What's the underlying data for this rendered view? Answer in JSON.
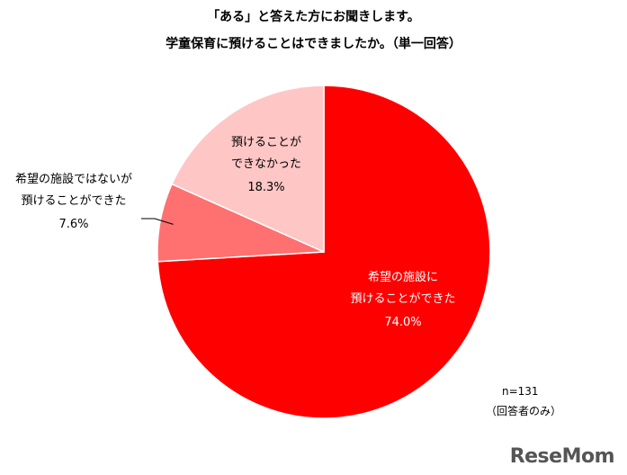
{
  "header": {
    "title_line1": "「ある」と答えた方にお聞きします。",
    "title_line2": "学童保育に預けることはできましたか。（単一回答）"
  },
  "notes": {
    "n": "n=131",
    "respondents": "（回答者のみ）"
  },
  "logo": "ReseMom",
  "colors": {
    "slice1": "#ff0000",
    "slice2": "#ff7070",
    "slice3": "#ffc6c6"
  },
  "chart_data": {
    "type": "pie",
    "title": "「ある」と答えた方にお聞きします。 学童保育に預けることはできましたか。（単一回答）",
    "slices": [
      {
        "label_lines": [
          "希望の施設に",
          "預けることができた"
        ],
        "value": 74.0,
        "value_label": "74.0%"
      },
      {
        "label_lines": [
          "希望の施設ではないが",
          "預けることができた"
        ],
        "value": 7.6,
        "value_label": "7.6%"
      },
      {
        "label_lines": [
          "預けることが",
          "できなかった"
        ],
        "value": 18.3,
        "value_label": "18.3%"
      }
    ]
  }
}
